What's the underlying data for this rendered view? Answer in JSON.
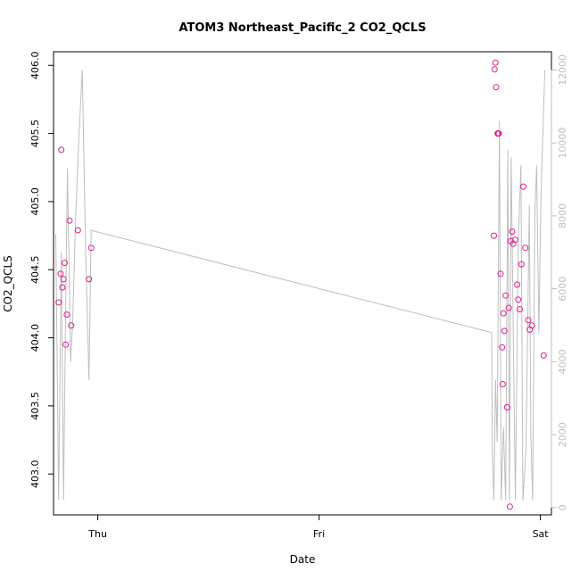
{
  "chart_data": {
    "type": "scatter",
    "title": "ATOM3 Northeast_Pacific_2 CO2_QCLS",
    "xlabel": "Date",
    "ylabel": "CO2_QCLS",
    "x_ticks": [
      "Thu",
      "Fri",
      "Sat"
    ],
    "xlim_days": [
      -0.2,
      2.05
    ],
    "ylim": [
      402.7,
      406.1
    ],
    "y_ticks": [
      "403.0",
      "403.5",
      "404.0",
      "404.5",
      "405.0",
      "405.5",
      "406.0"
    ],
    "y2lim": [
      -200,
      12500
    ],
    "y2_ticks": [
      "0",
      "2000",
      "4000",
      "6000",
      "8000",
      "10000",
      "12000"
    ],
    "colors": {
      "points": "#e6198c",
      "altitude_line": "#bebebe",
      "axis": "#000000"
    },
    "series": [
      {
        "type": "scatter",
        "x_days": [
          -0.177,
          -0.168,
          -0.165,
          -0.16,
          -0.155,
          -0.15,
          -0.145,
          -0.14,
          -0.128,
          -0.12,
          -0.09,
          -0.04,
          -0.03,
          1.79,
          1.793,
          1.797,
          1.8,
          1.807,
          1.809,
          1.812,
          1.82,
          1.827,
          1.83,
          1.833,
          1.837,
          1.843,
          1.85,
          1.857,
          1.862,
          1.866,
          1.872,
          1.877,
          1.887,
          1.895,
          1.9,
          1.907,
          1.914,
          1.923,
          1.932,
          1.945,
          1.952,
          1.962,
          2.015
        ],
        "y": [
          404.26,
          404.47,
          405.38,
          404.37,
          404.43,
          404.55,
          403.95,
          404.17,
          404.86,
          404.09,
          404.79,
          404.43,
          404.66,
          404.75,
          405.97,
          406.02,
          405.84,
          405.5,
          405.5,
          405.5,
          404.47,
          403.93,
          403.66,
          404.18,
          404.05,
          404.31,
          403.49,
          404.22,
          402.76,
          404.71,
          404.78,
          404.69,
          404.72,
          404.39,
          404.28,
          404.21,
          404.54,
          405.11,
          404.66,
          404.13,
          404.06,
          404.09,
          403.87
        ]
      },
      {
        "type": "line",
        "axis": "right",
        "x_days": [
          -0.19,
          -0.177,
          -0.165,
          -0.155,
          -0.145,
          -0.137,
          -0.123,
          -0.113,
          -0.1,
          -0.085,
          -0.07,
          -0.055,
          -0.04,
          -0.03,
          1.78,
          1.783,
          1.79,
          1.797,
          1.805,
          1.815,
          1.823,
          1.833,
          1.843,
          1.853,
          1.86,
          1.868,
          1.877,
          1.887,
          1.9,
          1.912,
          1.921,
          1.935,
          1.95,
          1.957,
          1.965,
          1.975,
          1.983,
          1.993,
          2.003,
          2.02
        ],
        "y": [
          7500,
          200,
          7000,
          200,
          5500,
          9300,
          4000,
          5200,
          8000,
          10200,
          12000,
          7000,
          3500,
          7600,
          4800,
          1500,
          200,
          3500,
          1800,
          10600,
          200,
          2200,
          200,
          9800,
          200,
          9600,
          5000,
          200,
          7300,
          9400,
          200,
          1600,
          8300,
          2000,
          200,
          8000,
          9400,
          4800,
          8600,
          12000
        ]
      }
    ]
  }
}
